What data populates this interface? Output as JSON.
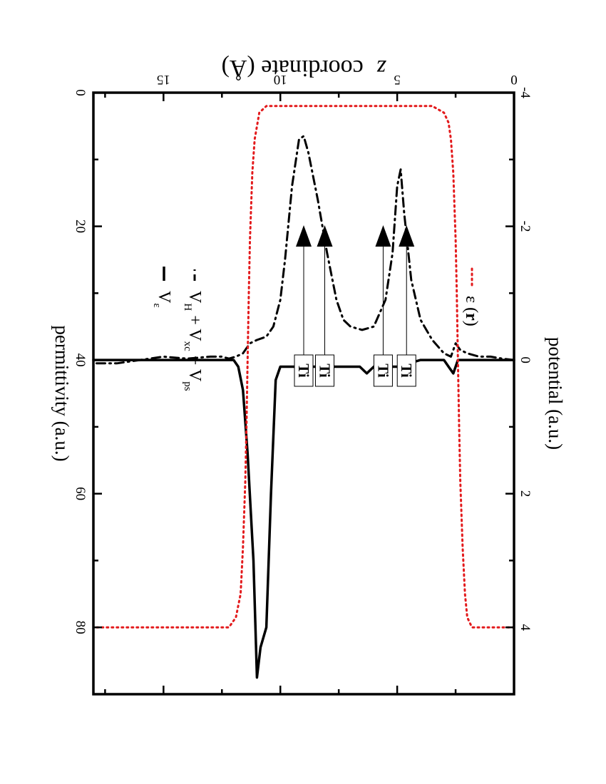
{
  "chart_data": {
    "type": "line",
    "xlabel_italic": "z",
    "xlabel": "coordinate (Å)",
    "ylabel_left": "potential (a.u.)",
    "ylabel_right": "permittivity (a.u.)",
    "xlim": [
      0,
      18
    ],
    "ylim_left": [
      -4,
      5
    ],
    "ylim_right": [
      0,
      90
    ],
    "x_ticks": [
      0,
      5,
      10,
      15
    ],
    "y_ticks_left": [
      4,
      2,
      0,
      -2,
      -4
    ],
    "y_ticks_right": [
      80,
      60,
      40,
      20,
      0
    ],
    "grid": false,
    "legend_placement": "top-right",
    "series": [
      {
        "name": "V_H + V_xc + V_ps",
        "axis": "left",
        "style": "dash-dot",
        "color": "#000000",
        "x": [
          0.0,
          0.5,
          1.0,
          1.5,
          2.0,
          2.3,
          2.5,
          2.7,
          3.0,
          3.5,
          4.0,
          4.4,
          4.7,
          4.85,
          5.0,
          5.2,
          5.5,
          6.0,
          6.5,
          7.0,
          7.3,
          7.6,
          8.0,
          8.4,
          8.8,
          9.0,
          9.2,
          9.5,
          9.8,
          10.0,
          10.3,
          10.6,
          11.0,
          11.3,
          11.6,
          11.9,
          12.2,
          12.5,
          13.0,
          14.0,
          15.0,
          16.0,
          17.0,
          18.0
        ],
        "values": [
          0.0,
          -0.02,
          -0.05,
          -0.05,
          -0.1,
          -0.15,
          -0.25,
          -0.05,
          -0.1,
          -0.3,
          -0.6,
          -1.2,
          -2.2,
          -2.85,
          -2.6,
          -1.6,
          -0.9,
          -0.5,
          -0.45,
          -0.5,
          -0.6,
          -0.9,
          -1.6,
          -2.4,
          -3.1,
          -3.35,
          -3.3,
          -2.6,
          -1.5,
          -0.9,
          -0.5,
          -0.35,
          -0.3,
          -0.25,
          -0.1,
          -0.05,
          -0.02,
          -0.05,
          -0.05,
          -0.02,
          -0.05,
          0.0,
          0.05,
          0.05
        ]
      },
      {
        "name": "V_ε",
        "axis": "left",
        "style": "solid",
        "color": "#000000",
        "x": [
          0.0,
          1.0,
          2.0,
          2.4,
          2.6,
          2.8,
          3.0,
          4.0,
          5.0,
          6.0,
          6.3,
          6.6,
          7.0,
          8.0,
          9.0,
          10.0,
          10.2,
          10.4,
          10.6,
          10.85,
          11.0,
          11.15,
          11.4,
          11.6,
          11.8,
          12.0,
          13.0,
          14.0,
          15.0,
          16.0,
          17.0,
          18.0
        ],
        "values": [
          0.0,
          0.0,
          0.0,
          0.0,
          0.2,
          0.1,
          0.0,
          0.0,
          0.1,
          0.1,
          0.2,
          0.1,
          0.1,
          0.1,
          0.1,
          0.1,
          0.3,
          2.0,
          4.0,
          4.3,
          4.75,
          3.0,
          1.4,
          0.45,
          0.1,
          0.0,
          0.0,
          0.0,
          0.0,
          0.0,
          0.0,
          0.0
        ]
      },
      {
        "name": "ε (r)",
        "axis": "right",
        "style": "dotted",
        "color": "#e31a1c",
        "x": [
          0.0,
          1.8,
          2.0,
          2.1,
          2.2,
          2.3,
          2.35,
          2.4,
          2.45,
          2.5,
          2.6,
          2.7,
          2.8,
          3.0,
          3.5,
          10.6,
          10.9,
          11.1,
          11.2,
          11.3,
          11.35,
          11.4,
          11.45,
          11.5,
          11.6,
          11.7,
          11.9,
          12.2,
          18.0
        ],
        "values": [
          80,
          80,
          78.5,
          75,
          68,
          58,
          50,
          40,
          30,
          22,
          12,
          7,
          4.5,
          3,
          2,
          2,
          3,
          7,
          12,
          22,
          30,
          40,
          50,
          58,
          68,
          75,
          78.5,
          80,
          80
        ]
      }
    ],
    "annotations": [
      {
        "text": "Ti",
        "x": 4.6
      },
      {
        "text": "Ti",
        "x": 5.6
      },
      {
        "text": "Ti",
        "x": 8.1
      },
      {
        "text": "Ti",
        "x": 9.0
      }
    ]
  }
}
